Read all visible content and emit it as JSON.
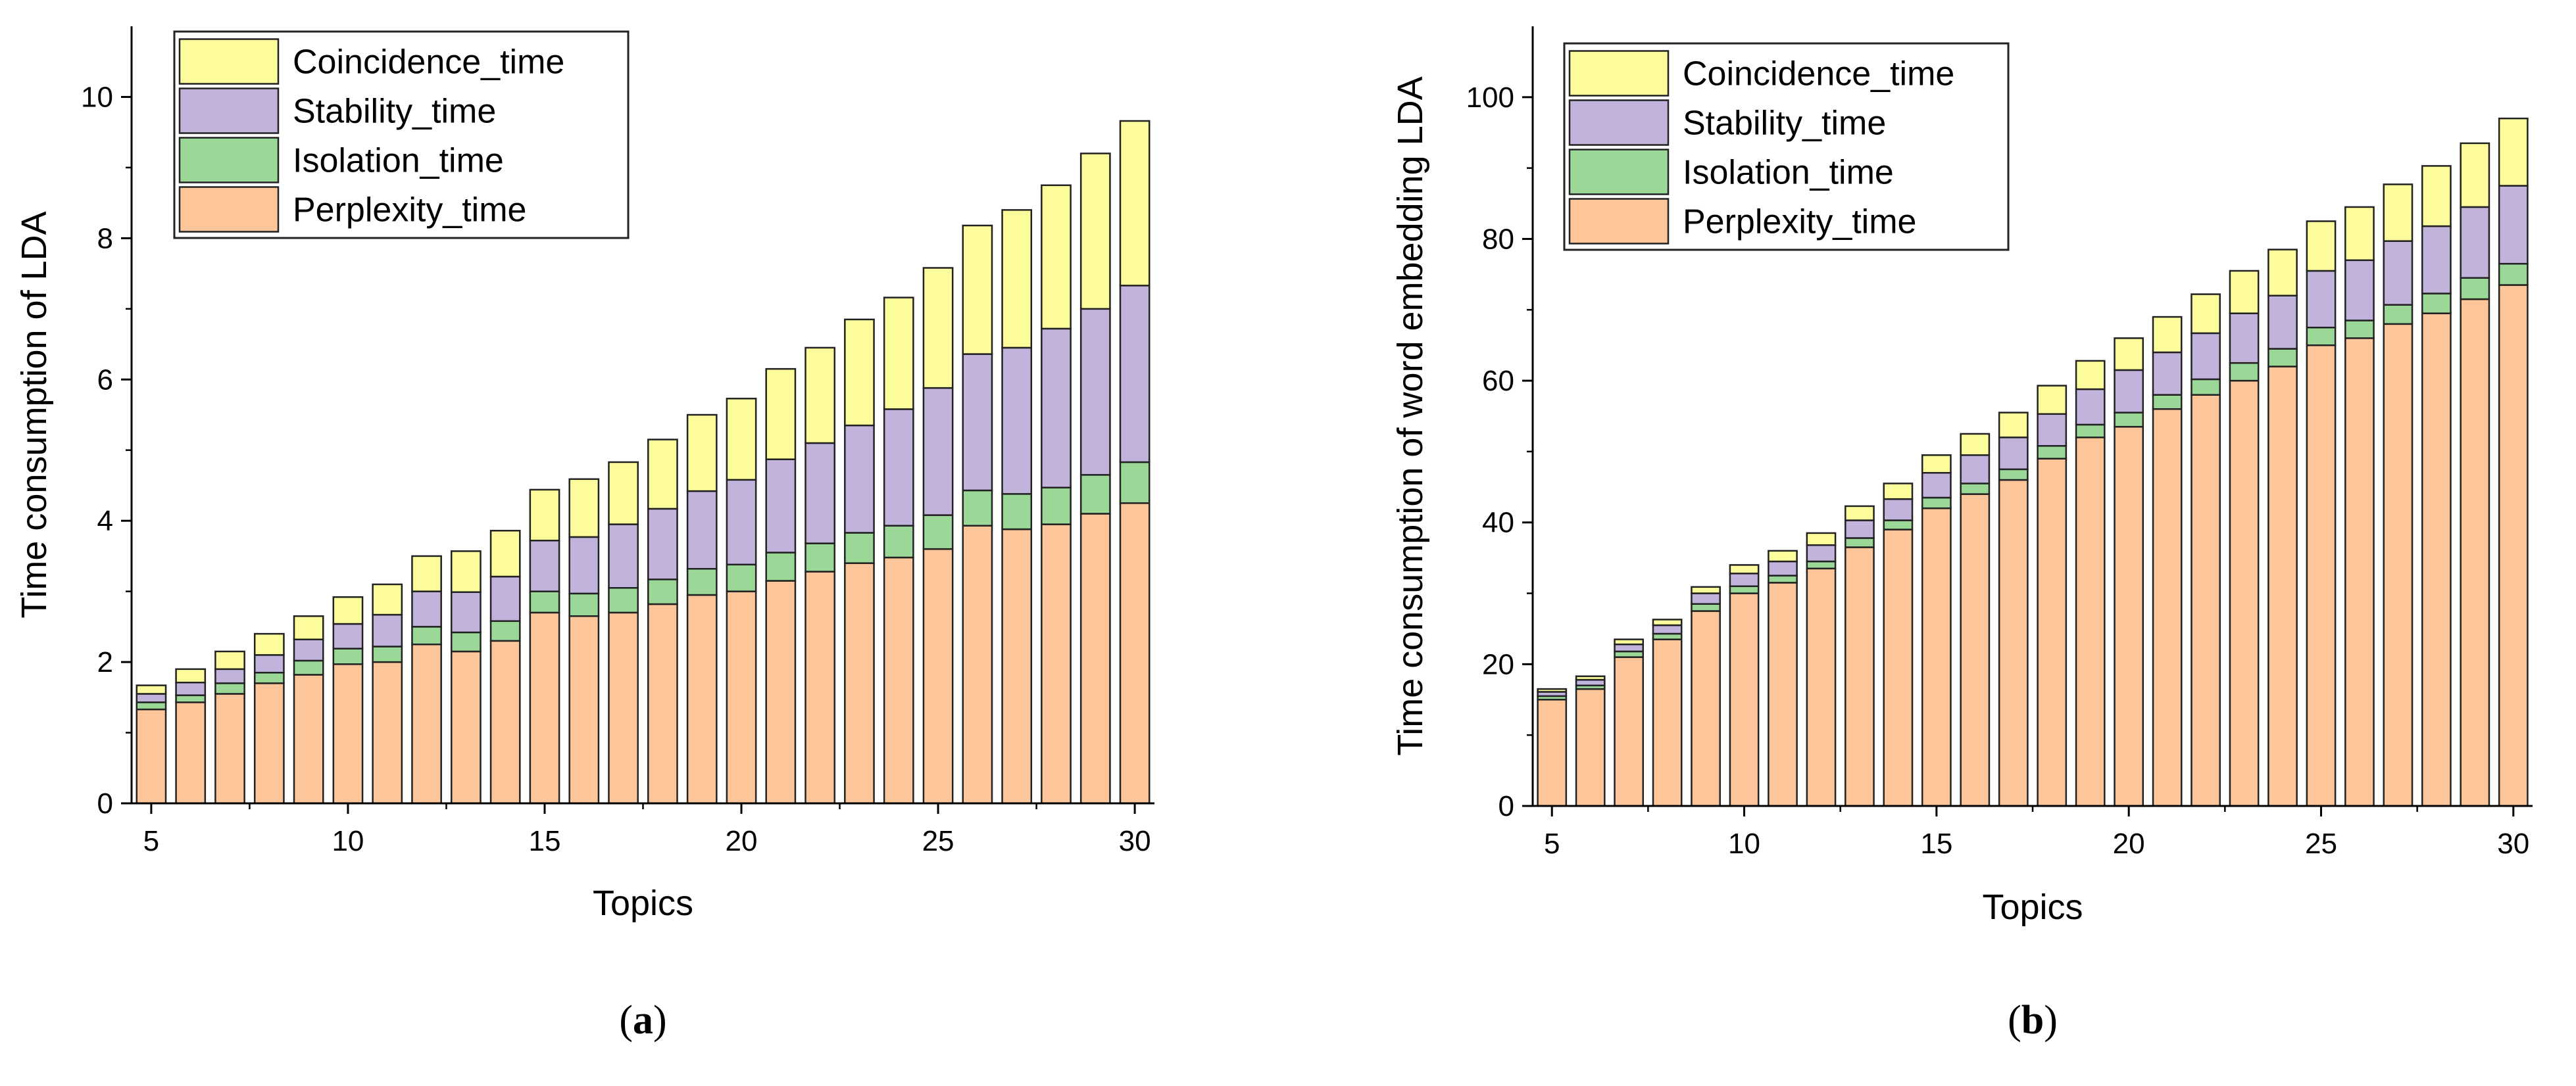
{
  "chart_data": [
    {
      "type": "bar",
      "stacked": true,
      "panel_label": {
        "open": "(",
        "letter": "a",
        "close": ")"
      },
      "xlabel": "Topics",
      "ylabel": "Time consumption of LDA",
      "ylim": [
        0,
        11
      ],
      "xlim": [
        4.5,
        30.5
      ],
      "x_ticks": [
        5,
        10,
        15,
        20,
        25,
        30
      ],
      "y_ticks": [
        0,
        2,
        4,
        6,
        8,
        10
      ],
      "legend_position": "top-left",
      "categories": [
        5,
        6,
        7,
        8,
        9,
        10,
        11,
        12,
        13,
        14,
        15,
        16,
        17,
        18,
        19,
        20,
        21,
        22,
        23,
        24,
        25,
        26,
        27,
        28,
        29,
        30
      ],
      "series": [
        {
          "name": "Perplexity_time",
          "color": "#fcc69a",
          "values": [
            1.33,
            1.43,
            1.55,
            1.7,
            1.82,
            1.97,
            2.0,
            2.25,
            2.15,
            2.3,
            2.7,
            2.65,
            2.7,
            2.82,
            2.95,
            3.0,
            3.15,
            3.28,
            3.4,
            3.48,
            3.6,
            3.93,
            3.88,
            3.95,
            4.1,
            4.25
          ]
        },
        {
          "name": "Isolation_time",
          "color": "#9bd898",
          "values": [
            0.1,
            0.1,
            0.15,
            0.15,
            0.2,
            0.22,
            0.22,
            0.25,
            0.27,
            0.28,
            0.3,
            0.32,
            0.35,
            0.35,
            0.37,
            0.38,
            0.4,
            0.4,
            0.43,
            0.45,
            0.48,
            0.5,
            0.5,
            0.52,
            0.55,
            0.58
          ]
        },
        {
          "name": "Stability_time",
          "color": "#c2b3dd",
          "values": [
            0.12,
            0.18,
            0.2,
            0.25,
            0.3,
            0.35,
            0.45,
            0.5,
            0.57,
            0.63,
            0.72,
            0.8,
            0.9,
            1.0,
            1.1,
            1.2,
            1.32,
            1.42,
            1.52,
            1.65,
            1.8,
            1.93,
            2.07,
            2.25,
            2.35,
            2.5
          ]
        },
        {
          "name": "Coincidence_time",
          "color": "#fcfc9d",
          "values": [
            0.12,
            0.19,
            0.25,
            0.3,
            0.33,
            0.38,
            0.43,
            0.5,
            0.58,
            0.65,
            0.72,
            0.82,
            0.88,
            0.98,
            1.08,
            1.15,
            1.28,
            1.35,
            1.5,
            1.58,
            1.7,
            1.82,
            1.95,
            2.03,
            2.2,
            2.33
          ]
        }
      ]
    },
    {
      "type": "bar",
      "stacked": true,
      "panel_label": {
        "open": "(",
        "letter": "b",
        "close": ")"
      },
      "xlabel": "Topics",
      "ylabel": "Time consumption of word embedding LDA",
      "ylim": [
        0,
        110
      ],
      "xlim": [
        4.5,
        30.5
      ],
      "x_ticks": [
        5,
        10,
        15,
        20,
        25,
        30
      ],
      "y_ticks": [
        0,
        20,
        40,
        60,
        80,
        100
      ],
      "legend_position": "top-left",
      "categories": [
        5,
        6,
        7,
        8,
        9,
        10,
        11,
        12,
        13,
        14,
        15,
        16,
        17,
        18,
        19,
        20,
        21,
        22,
        23,
        24,
        25,
        26,
        27,
        28,
        29,
        30
      ],
      "series": [
        {
          "name": "Perplexity_time",
          "color": "#fcc69a",
          "values": [
            15,
            16.5,
            21,
            23.5,
            27.5,
            30,
            31.5,
            33.5,
            36.5,
            39,
            42,
            44,
            46,
            49,
            52,
            53.5,
            56,
            58,
            60,
            62,
            65,
            66,
            68,
            69.5,
            71.5,
            73.5
          ]
        },
        {
          "name": "Isolation_time",
          "color": "#9bd898",
          "values": [
            0.5,
            0.5,
            0.8,
            0.8,
            1.0,
            1.0,
            1.0,
            1.0,
            1.3,
            1.3,
            1.5,
            1.5,
            1.5,
            1.8,
            1.8,
            2.0,
            2.0,
            2.2,
            2.5,
            2.5,
            2.5,
            2.5,
            2.7,
            2.8,
            3.0,
            3.0
          ]
        },
        {
          "name": "Stability_time",
          "color": "#c2b3dd",
          "values": [
            0.6,
            0.8,
            1.0,
            1.2,
            1.5,
            1.8,
            2.0,
            2.3,
            2.5,
            3.0,
            3.5,
            4.0,
            4.5,
            4.5,
            5.0,
            6.0,
            6.0,
            6.5,
            7.0,
            7.5,
            8.0,
            8.5,
            9.0,
            9.5,
            10.0,
            11.0
          ]
        },
        {
          "name": "Coincidence_time",
          "color": "#fcfc9d",
          "values": [
            0.4,
            0.5,
            0.7,
            0.8,
            0.9,
            1.2,
            1.5,
            1.7,
            2.0,
            2.2,
            2.5,
            3.0,
            3.5,
            4.0,
            4.0,
            4.5,
            5.0,
            5.5,
            6.0,
            6.5,
            7.0,
            7.5,
            8.0,
            8.5,
            9.0,
            9.5
          ]
        }
      ]
    }
  ]
}
